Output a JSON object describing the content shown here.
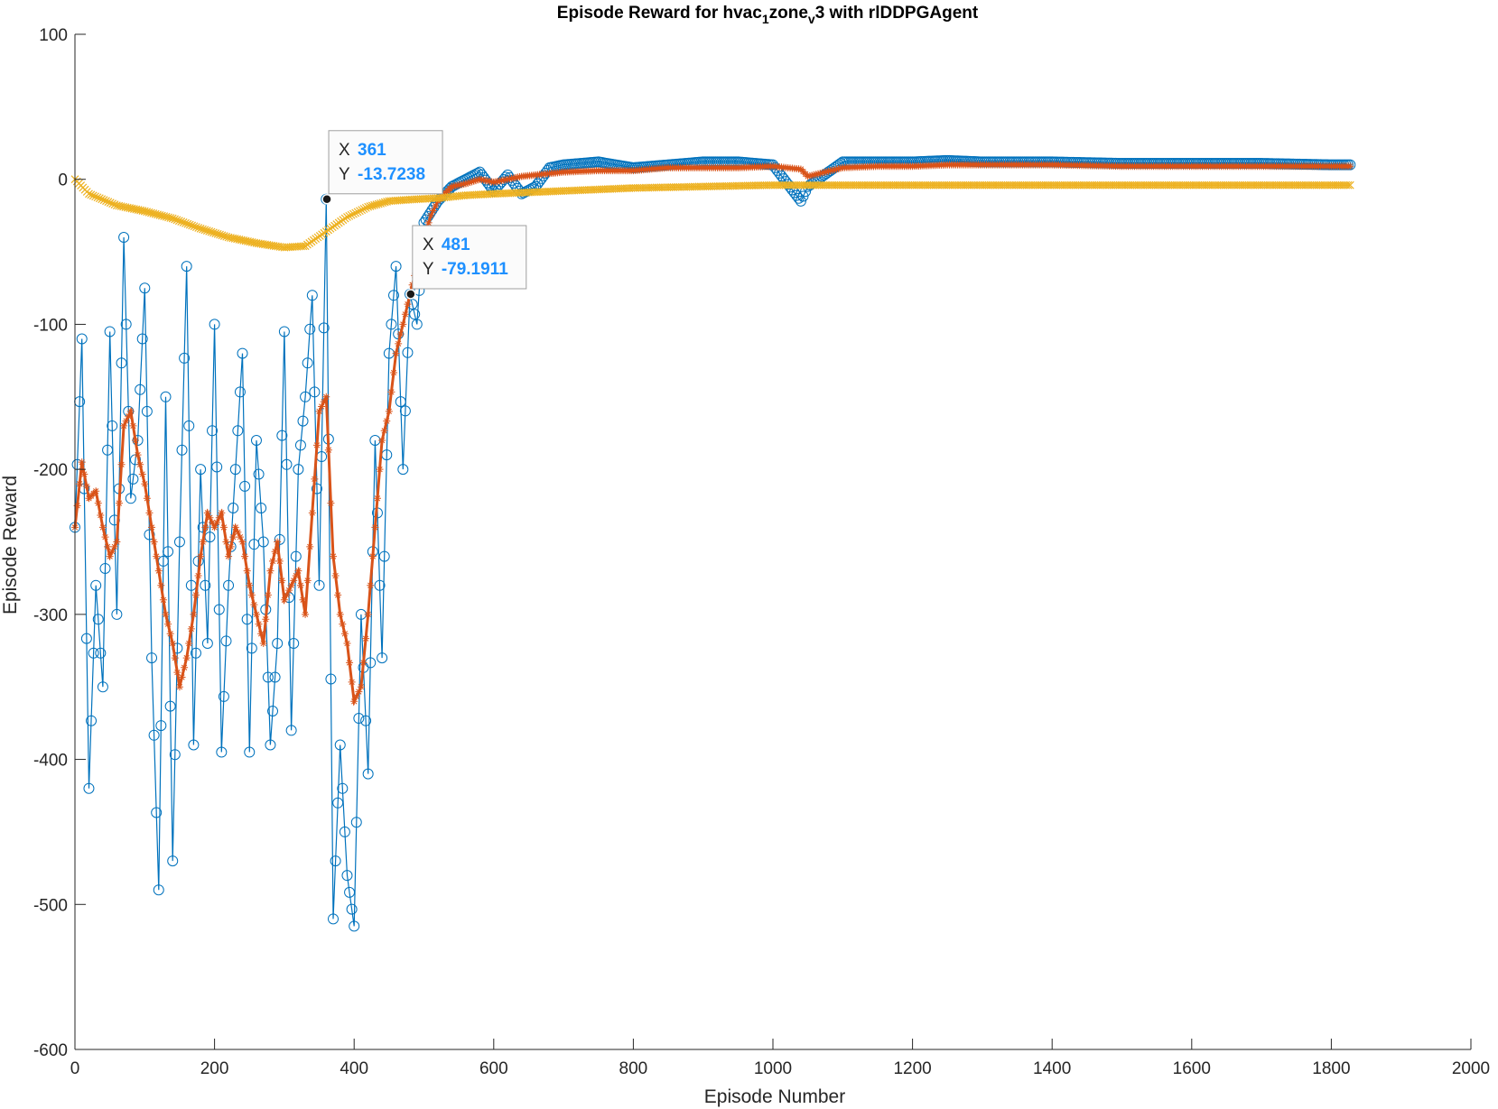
{
  "chart_data": {
    "type": "line",
    "title": "Episode Reward for hvac",
    "title_parts": [
      "1",
      "zone",
      "v",
      "3 with rlDDPGAgent"
    ],
    "xlabel": "Episode Number",
    "ylabel": "Episode Reward",
    "xlim": [
      0,
      2000
    ],
    "ylim": [
      -600,
      100
    ],
    "xticks": [
      0,
      200,
      400,
      600,
      800,
      1000,
      1200,
      1400,
      1600,
      1800,
      2000
    ],
    "yticks": [
      -600,
      -500,
      -400,
      -300,
      -200,
      -100,
      0,
      100
    ],
    "grid": false,
    "legend": "none",
    "colors": {
      "episode": "#0072bd",
      "average": "#d95319",
      "q0": "#edb120"
    },
    "series": [
      {
        "key": "episode",
        "style": "stem-circle",
        "x": [
          0,
          10,
          20,
          30,
          40,
          50,
          60,
          70,
          80,
          90,
          100,
          110,
          120,
          130,
          140,
          150,
          160,
          170,
          180,
          190,
          200,
          210,
          220,
          230,
          240,
          250,
          260,
          270,
          280,
          290,
          300,
          310,
          320,
          330,
          340,
          350,
          360,
          370,
          380,
          390,
          400,
          410,
          420,
          430,
          440,
          450,
          460,
          470,
          480,
          490,
          500,
          520,
          540,
          560,
          580,
          600,
          620,
          640,
          660,
          680,
          700,
          750,
          800,
          850,
          900,
          950,
          1000,
          1040,
          1050,
          1100,
          1150,
          1200,
          1250,
          1300,
          1400,
          1500,
          1600,
          1700,
          1800,
          1827
        ],
        "y": [
          -240,
          -110,
          -420,
          -280,
          -350,
          -105,
          -300,
          -40,
          -220,
          -180,
          -75,
          -330,
          -490,
          -150,
          -470,
          -250,
          -60,
          -390,
          -200,
          -320,
          -100,
          -395,
          -280,
          -200,
          -120,
          -395,
          -180,
          -250,
          -390,
          -320,
          -105,
          -380,
          -200,
          -150,
          -80,
          -280,
          -13.7,
          -510,
          -390,
          -480,
          -515,
          -300,
          -410,
          -180,
          -330,
          -120,
          -60,
          -200,
          -79.2,
          -100,
          -30,
          -15,
          -5,
          0,
          5,
          -8,
          3,
          -10,
          -5,
          8,
          10,
          12,
          8,
          10,
          12,
          12,
          10,
          -15,
          -5,
          12,
          12,
          12,
          13,
          12,
          12,
          11,
          11,
          11,
          10,
          10
        ]
      },
      {
        "key": "average",
        "style": "star-line",
        "x": [
          0,
          10,
          20,
          30,
          40,
          50,
          60,
          70,
          80,
          90,
          100,
          110,
          120,
          130,
          140,
          150,
          160,
          170,
          180,
          190,
          200,
          210,
          220,
          230,
          240,
          250,
          260,
          270,
          280,
          290,
          300,
          310,
          320,
          330,
          340,
          350,
          360,
          370,
          380,
          390,
          400,
          410,
          420,
          430,
          440,
          450,
          460,
          470,
          480,
          490,
          500,
          510,
          520,
          540,
          560,
          580,
          600,
          620,
          640,
          660,
          680,
          700,
          750,
          800,
          850,
          900,
          950,
          1000,
          1040,
          1050,
          1100,
          1150,
          1200,
          1250,
          1300,
          1400,
          1500,
          1600,
          1700,
          1800,
          1827
        ],
        "y": [
          -240,
          -195,
          -220,
          -215,
          -240,
          -260,
          -250,
          -170,
          -160,
          -190,
          -210,
          -240,
          -270,
          -300,
          -320,
          -350,
          -330,
          -300,
          -260,
          -230,
          -240,
          -230,
          -260,
          -240,
          -250,
          -280,
          -300,
          -320,
          -270,
          -250,
          -290,
          -280,
          -270,
          -300,
          -230,
          -160,
          -150,
          -260,
          -300,
          -320,
          -360,
          -350,
          -300,
          -240,
          -180,
          -160,
          -120,
          -100,
          -79.2,
          -60,
          -40,
          -25,
          -15,
          -5,
          -3,
          0,
          -2,
          0,
          2,
          3,
          4,
          5,
          6,
          6,
          8,
          8,
          8,
          9,
          7,
          2,
          8,
          9,
          9,
          10,
          10,
          10,
          9,
          9,
          9,
          9,
          9
        ]
      },
      {
        "key": "q0",
        "style": "x-line",
        "x": [
          0,
          20,
          60,
          100,
          140,
          180,
          220,
          260,
          300,
          330,
          360,
          390,
          420,
          450,
          480,
          520,
          560,
          600,
          650,
          700,
          800,
          900,
          1000,
          1100,
          1200,
          1300,
          1400,
          1500,
          1600,
          1700,
          1800,
          1827
        ],
        "y": [
          0,
          -10,
          -18,
          -22,
          -27,
          -34,
          -40,
          -44,
          -47,
          -46,
          -36,
          -26,
          -19,
          -15,
          -14,
          -13,
          -11,
          -10,
          -9,
          -8,
          -6,
          -5,
          -4,
          -4,
          -4,
          -4,
          -4,
          -4,
          -4,
          -4,
          -4,
          -4
        ]
      }
    ],
    "annotations": [
      {
        "x": 361,
        "y": -13.7238,
        "label_x": "X",
        "label_y": "Y",
        "text_x": "361",
        "text_y": "-13.7238"
      },
      {
        "x": 481,
        "y": -79.1911,
        "label_x": "X",
        "label_y": "Y",
        "text_x": "481",
        "text_y": "-79.1911"
      }
    ]
  }
}
